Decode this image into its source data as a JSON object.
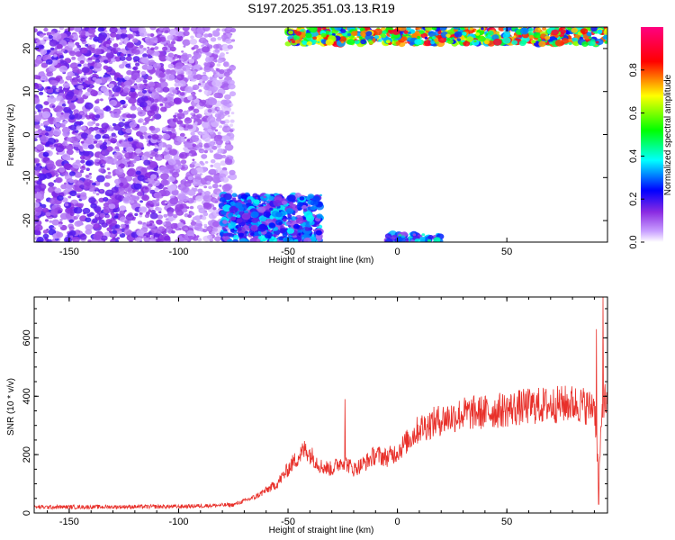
{
  "page": {
    "title": "S197.2025.351.03.13.R19"
  },
  "chart_data": [
    {
      "type": "heatmap",
      "title": "S197.2025.351.03.13.R19",
      "xlabel": "Height of straight line (km)",
      "ylabel": "Frequency (Hz)",
      "xlim": [
        -166,
        96
      ],
      "ylim": [
        -25,
        25
      ],
      "x_ticks": [
        -150,
        -100,
        -50,
        0,
        50
      ],
      "y_ticks": [
        -20,
        -10,
        0,
        10,
        20
      ],
      "colorbar": {
        "label": "Normalized spectral amplitude",
        "range": [
          0,
          1
        ],
        "ticks": [
          0.0,
          0.2,
          0.4,
          0.6,
          0.8
        ],
        "colormap": [
          "#ffffff",
          "#9b30ff",
          "#0000ff",
          "#00ffff",
          "#00ff00",
          "#ffff00",
          "#ff0000",
          "#ff00aa"
        ]
      },
      "features": [
        {
          "name": "broadband weak energy",
          "x_range": [
            -166,
            -75
          ],
          "y_range": [
            -25,
            25
          ],
          "amplitude": 0.15
        },
        {
          "name": "low-frequency cluster",
          "x_range": [
            -80,
            -35
          ],
          "y_range": [
            -25,
            -14
          ],
          "amplitude": 0.3
        },
        {
          "name": "high-frequency ridge",
          "x_range": [
            -50,
            96
          ],
          "y_range": [
            21,
            25
          ],
          "amplitude": 0.7
        },
        {
          "name": "low-frequency ridge",
          "x_range": [
            -5,
            20
          ],
          "y_range": [
            -25,
            -23
          ],
          "amplitude": 0.35
        }
      ]
    },
    {
      "type": "line",
      "xlabel": "Height of straight line (km)",
      "ylabel": "SNR (10 * v/v)",
      "xlim": [
        -166,
        96
      ],
      "ylim": [
        0,
        740
      ],
      "x_ticks": [
        -150,
        -100,
        -50,
        0,
        50
      ],
      "y_ticks": [
        0,
        200,
        400,
        600
      ],
      "color": "#e8302a",
      "profile": {
        "x": [
          -166,
          -100,
          -75,
          -65,
          -55,
          -48,
          -42,
          -35,
          -30,
          -25,
          -20,
          -15,
          -10,
          -5,
          0,
          5,
          10,
          20,
          30,
          40,
          50,
          60,
          70,
          80,
          85,
          88,
          90,
          92,
          94,
          96
        ],
        "y": [
          20,
          22,
          28,
          55,
          100,
          170,
          220,
          160,
          150,
          180,
          150,
          170,
          200,
          190,
          210,
          250,
          290,
          320,
          340,
          345,
          355,
          365,
          370,
          375,
          370,
          360,
          380,
          120,
          400,
          360
        ]
      },
      "peaks": [
        {
          "x": -24,
          "y": 390
        },
        {
          "x": 91,
          "y": 630
        },
        {
          "x": 94,
          "y": 740
        },
        {
          "x": 92,
          "y": 30
        }
      ]
    }
  ]
}
